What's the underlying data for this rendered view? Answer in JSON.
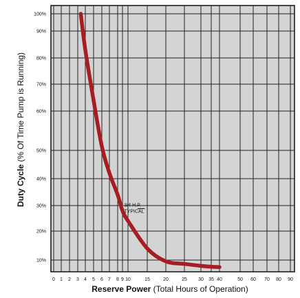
{
  "chart_data": {
    "type": "line",
    "y_label_bold": "Duty Cycle",
    "y_label_rest": " (% Of Time Pump is Running)",
    "x_label_bold": "Reserve Power",
    "x_label_rest": " (Total Hours of Operation)",
    "x_ticks": [
      0,
      1,
      2,
      3,
      4,
      5,
      6,
      7,
      8,
      9,
      10,
      15,
      20,
      25,
      30,
      35,
      40,
      50,
      60,
      70,
      80,
      90
    ],
    "x_tick_labels": [
      "0",
      "1",
      "2",
      "3",
      "4",
      "5",
      "6",
      "7",
      "8",
      "9",
      "10",
      "15",
      "20",
      "25",
      "30",
      "35",
      "40",
      "50",
      "60",
      "70",
      "80",
      "90"
    ],
    "y_ticks": [
      10,
      20,
      30,
      40,
      50,
      60,
      70,
      80,
      90,
      100
    ],
    "y_tick_labels": [
      "10%",
      "20%",
      "30%",
      "40%",
      "50%",
      "60%",
      "70%",
      "80%",
      "90%",
      "100%"
    ],
    "xlim": [
      0,
      90
    ],
    "ylim": [
      3,
      100
    ],
    "grid": true,
    "background_color": "#d4d4d4",
    "grid_color": "#222222",
    "series": [
      {
        "color": "#a51e22",
        "x": [
          3.4,
          4,
          5,
          6,
          7,
          8,
          9,
          10,
          15,
          20,
          25,
          30,
          35,
          40
        ],
        "y": [
          100,
          83,
          64,
          51,
          42,
          34,
          28,
          24,
          14,
          9,
          7,
          5.5,
          4.8,
          4.5
        ]
      }
    ],
    "annotation": {
      "text_line1": "3/4 H.P.",
      "text_line2": "TYPICAL",
      "x": 9.3,
      "y": 28
    }
  }
}
